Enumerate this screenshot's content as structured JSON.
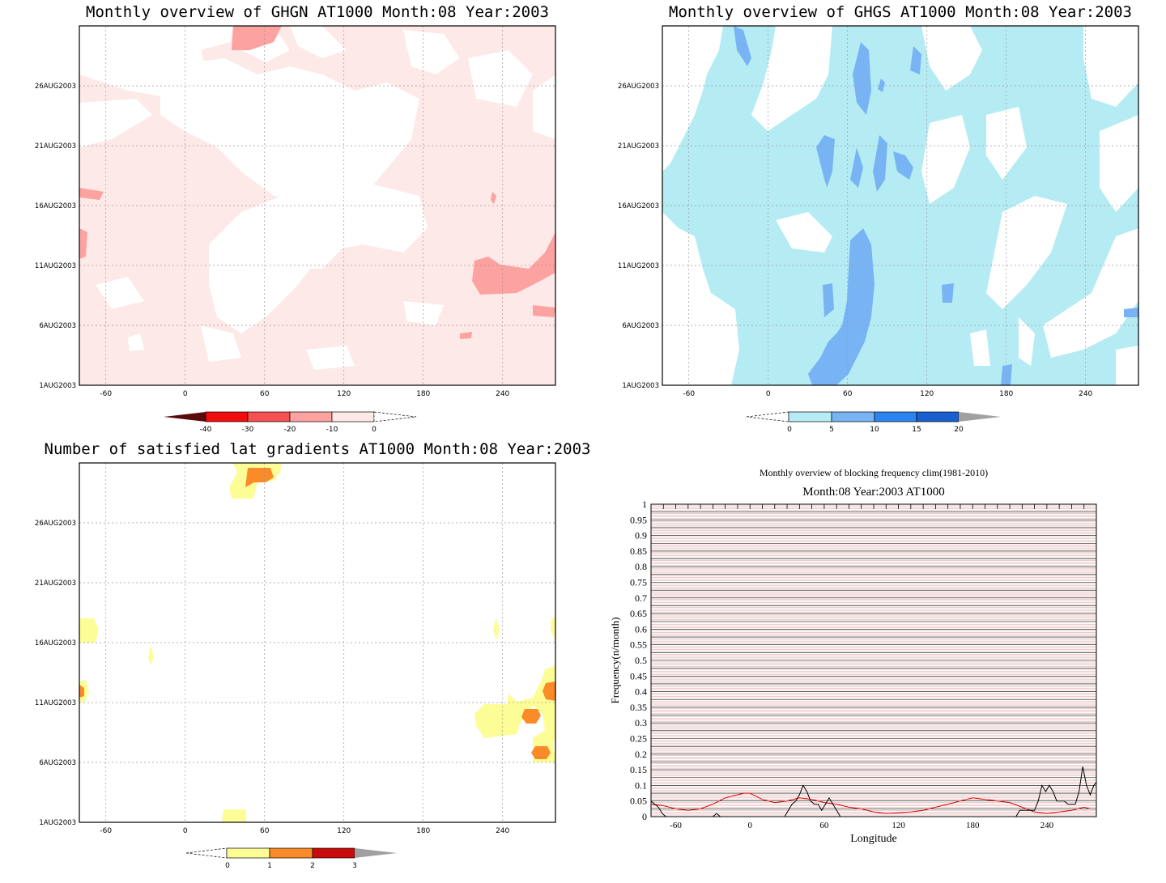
{
  "colors": {
    "neg_0_10": "#fde9e8",
    "neg_10_20": "#fca2a1",
    "neg_20_30": "#f75050",
    "neg_30_40": "#f00d0d",
    "neg_lt_40": "#5a0a0a",
    "pos_0_5": "#b5ecf4",
    "pos_5_10": "#78b4f4",
    "pos_10_15": "#2c84f0",
    "pos_15_20": "#1a5fd0",
    "pos_gt_20": "#a0a0a0",
    "cnt_0_1": "#fdfd98",
    "cnt_1_2": "#fb8a28",
    "cnt_2_3": "#c80c0c",
    "cnt_gt_3": "#a0a0a0",
    "freq_current": "#000000",
    "freq_clim": "#e00000",
    "hline_black": "#000000",
    "hline_red": "#d08080"
  },
  "chart_data": [
    {
      "type": "heatmap",
      "title": "Monthly overview of GHGN AT1000 Month:08 Year:2003",
      "x_ticks": [
        "-60",
        "0",
        "60",
        "120",
        "180",
        "240"
      ],
      "x_tick_values": [
        -60,
        0,
        60,
        120,
        180,
        240
      ],
      "xlim": [
        -80,
        280
      ],
      "y_ticks": [
        "1AUG2003",
        "6AUG2003",
        "11AUG2003",
        "16AUG2003",
        "21AUG2003",
        "26AUG2003"
      ],
      "y_tick_values": [
        1,
        6,
        11,
        16,
        21,
        26
      ],
      "ylim": [
        1,
        31
      ],
      "grid": true,
      "colorbar": {
        "labels": [
          "-40",
          "-30",
          "-20",
          "-10",
          "0"
        ],
        "levels": [
          -40,
          -30,
          -20,
          -10,
          0
        ]
      }
    },
    {
      "type": "heatmap",
      "title": "Monthly overview of GHGS AT1000 Month:08 Year:2003",
      "x_ticks": [
        "-60",
        "0",
        "60",
        "120",
        "180",
        "240"
      ],
      "x_tick_values": [
        -60,
        0,
        60,
        120,
        180,
        240
      ],
      "xlim": [
        -80,
        280
      ],
      "y_ticks": [
        "1AUG2003",
        "6AUG2003",
        "11AUG2003",
        "16AUG2003",
        "21AUG2003",
        "26AUG2003"
      ],
      "y_tick_values": [
        1,
        6,
        11,
        16,
        21,
        26
      ],
      "ylim": [
        1,
        31
      ],
      "grid": true,
      "colorbar": {
        "labels": [
          "0",
          "5",
          "10",
          "15",
          "20"
        ],
        "levels": [
          0,
          5,
          10,
          15,
          20
        ]
      }
    },
    {
      "type": "heatmap",
      "title": "Number of satisfied lat gradients AT1000 Month:08 Year:2003",
      "x_ticks": [
        "-60",
        "0",
        "60",
        "120",
        "180",
        "240"
      ],
      "x_tick_values": [
        -60,
        0,
        60,
        120,
        180,
        240
      ],
      "xlim": [
        -80,
        280
      ],
      "y_ticks": [
        "1AUG2003",
        "6AUG2003",
        "11AUG2003",
        "16AUG2003",
        "21AUG2003",
        "26AUG2003"
      ],
      "y_tick_values": [
        1,
        6,
        11,
        16,
        21,
        26
      ],
      "ylim": [
        1,
        31
      ],
      "grid": true,
      "colorbar": {
        "labels": [
          "0",
          "1",
          "2",
          "3"
        ],
        "levels": [
          0,
          1,
          2,
          3
        ]
      }
    },
    {
      "type": "line",
      "title": "Monthly overview of blocking frequency clim(1981-2010)",
      "subtitle": "Month:08 Year:2003  AT1000",
      "xlabel": "Longitude",
      "ylabel": "Frequency(n/month)",
      "x_ticks": [
        "-60",
        "0",
        "60",
        "120",
        "180",
        "240"
      ],
      "x_tick_values": [
        -60,
        0,
        60,
        120,
        180,
        240
      ],
      "xlim": [
        -80,
        280
      ],
      "y_ticks": [
        "0",
        "0.05",
        "0.1",
        "0.15",
        "0.2",
        "0.25",
        "0.3",
        "0.35",
        "0.4",
        "0.45",
        "0.5",
        "0.55",
        "0.6",
        "0.65",
        "0.7",
        "0.75",
        "0.8",
        "0.85",
        "0.9",
        "0.95",
        "1"
      ],
      "ylim": [
        0,
        1
      ],
      "series": [
        {
          "x": [
            -80,
            -77,
            -74,
            -71,
            -68,
            -65,
            -60,
            -55,
            -50,
            -45,
            -40,
            -35,
            -30,
            -27,
            -24,
            -20,
            -15,
            -10,
            -5,
            0,
            5,
            10,
            15,
            20,
            25,
            28,
            31,
            34,
            37,
            40,
            43,
            46,
            49,
            52,
            55,
            58,
            61,
            64,
            67,
            70,
            73,
            76,
            80,
            90,
            100,
            110,
            120,
            130,
            140,
            150,
            160,
            170,
            180,
            190,
            200,
            210,
            215,
            218,
            221,
            224,
            227,
            230,
            233,
            236,
            239,
            242,
            245,
            248,
            251,
            254,
            257,
            260,
            263,
            266,
            269,
            272,
            275,
            278,
            280
          ],
          "y": [
            0.05,
            0.04,
            0.03,
            0.01,
            0,
            0,
            0,
            0,
            0,
            0,
            0,
            0,
            0,
            0.01,
            0,
            0,
            0,
            0,
            0,
            0,
            0,
            0,
            0,
            0,
            0,
            0,
            0.02,
            0.04,
            0.05,
            0.07,
            0.1,
            0.08,
            0.05,
            0.04,
            0.04,
            0.02,
            0.04,
            0.06,
            0.04,
            0.02,
            0,
            0,
            0,
            0,
            0,
            0,
            0,
            0,
            0,
            0,
            0,
            0,
            0,
            0,
            0,
            0,
            0,
            0.02,
            0.02,
            0.02,
            0.02,
            0.02,
            0.05,
            0.1,
            0.08,
            0.1,
            0.08,
            0.05,
            0.05,
            0.05,
            0.04,
            0.04,
            0.04,
            0.08,
            0.16,
            0.1,
            0.07,
            0.1,
            0.11
          ]
        },
        {
          "x": [
            -80,
            -70,
            -60,
            -50,
            -40,
            -30,
            -20,
            -10,
            -5,
            0,
            5,
            10,
            20,
            30,
            40,
            50,
            60,
            70,
            80,
            90,
            100,
            110,
            120,
            130,
            140,
            150,
            160,
            170,
            180,
            190,
            200,
            210,
            220,
            230,
            240,
            250,
            260,
            270,
            275
          ],
          "y": [
            0.04,
            0.035,
            0.025,
            0.02,
            0.025,
            0.04,
            0.06,
            0.07,
            0.075,
            0.075,
            0.065,
            0.055,
            0.045,
            0.05,
            0.06,
            0.055,
            0.045,
            0.04,
            0.03,
            0.025,
            0.015,
            0.01,
            0.012,
            0.015,
            0.02,
            0.03,
            0.04,
            0.05,
            0.06,
            0.055,
            0.05,
            0.045,
            0.03,
            0.015,
            0.01,
            0.015,
            0.02,
            0.03,
            0.025
          ]
        }
      ]
    }
  ]
}
